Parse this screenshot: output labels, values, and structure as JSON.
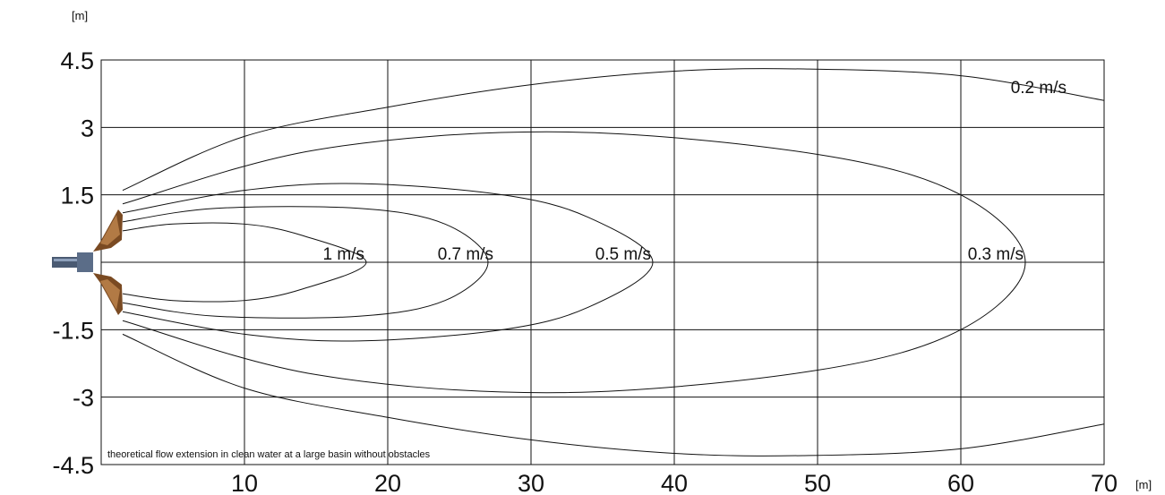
{
  "chart_data": {
    "type": "line",
    "x_unit": "[m]",
    "y_unit": "[m]",
    "xlim": [
      0,
      70
    ],
    "ylim": [
      -4.5,
      4.5
    ],
    "x_ticks": [
      10,
      20,
      30,
      40,
      50,
      60,
      70
    ],
    "x_tick_labels": [
      "10",
      "20",
      "30",
      "40",
      "50",
      "60",
      "70"
    ],
    "y_ticks": [
      4.5,
      3,
      1.5,
      0,
      -1.5,
      -3,
      -4.5
    ],
    "y_tick_labels": [
      "4.5",
      "3",
      "1.5",
      "",
      "-1.5",
      "-3",
      "-4.5"
    ],
    "grid": true,
    "note": "theoretical flow extension in clean water at a large basin without obstacles",
    "series": [
      {
        "name": "1 m/s",
        "label_pos": [
          19,
          0
        ],
        "x": [
          1.5,
          5,
          10,
          14,
          18.5,
          14,
          10,
          5,
          1.5
        ],
        "y": [
          0.7,
          0.85,
          0.85,
          0.6,
          0,
          -0.6,
          -0.85,
          -0.85,
          -0.7
        ]
      },
      {
        "name": "0.7 m/s",
        "label_pos": [
          28,
          0
        ],
        "x": [
          1.5,
          8,
          18,
          24,
          27,
          24,
          18,
          8,
          1.5
        ],
        "y": [
          0.9,
          1.2,
          1.2,
          0.85,
          0,
          -0.85,
          -1.2,
          -1.2,
          -0.9
        ]
      },
      {
        "name": "0.5 m/s",
        "label_pos": [
          39,
          0
        ],
        "x": [
          1.5,
          10,
          18,
          28,
          34,
          38.5,
          34,
          28,
          18,
          10,
          1.5
        ],
        "y": [
          1.1,
          1.6,
          1.75,
          1.5,
          1.0,
          0,
          -1.0,
          -1.5,
          -1.75,
          -1.6,
          -1.1
        ]
      },
      {
        "name": "0.3 m/s",
        "label_pos": [
          65,
          0
        ],
        "x": [
          1.5,
          15,
          32,
          50,
          60,
          64.5,
          60,
          50,
          32,
          15,
          1.5
        ],
        "y": [
          1.3,
          2.5,
          2.9,
          2.4,
          1.5,
          0,
          -1.5,
          -2.4,
          -2.9,
          -2.5,
          -1.3
        ]
      },
      {
        "name": "0.2 m/s",
        "label_pos": [
          68,
          3.7
        ],
        "x": [
          1.5,
          10,
          20,
          30,
          40,
          49,
          60,
          70
        ],
        "y": [
          1.6,
          2.8,
          3.45,
          3.95,
          4.25,
          4.3,
          4.15,
          3.6
        ],
        "x_lower": [
          1.5,
          10,
          20,
          30,
          40,
          49,
          60,
          70
        ],
        "y_lower": [
          -1.6,
          -2.8,
          -3.45,
          -3.95,
          -4.25,
          -4.3,
          -4.15,
          -3.6
        ]
      }
    ]
  }
}
